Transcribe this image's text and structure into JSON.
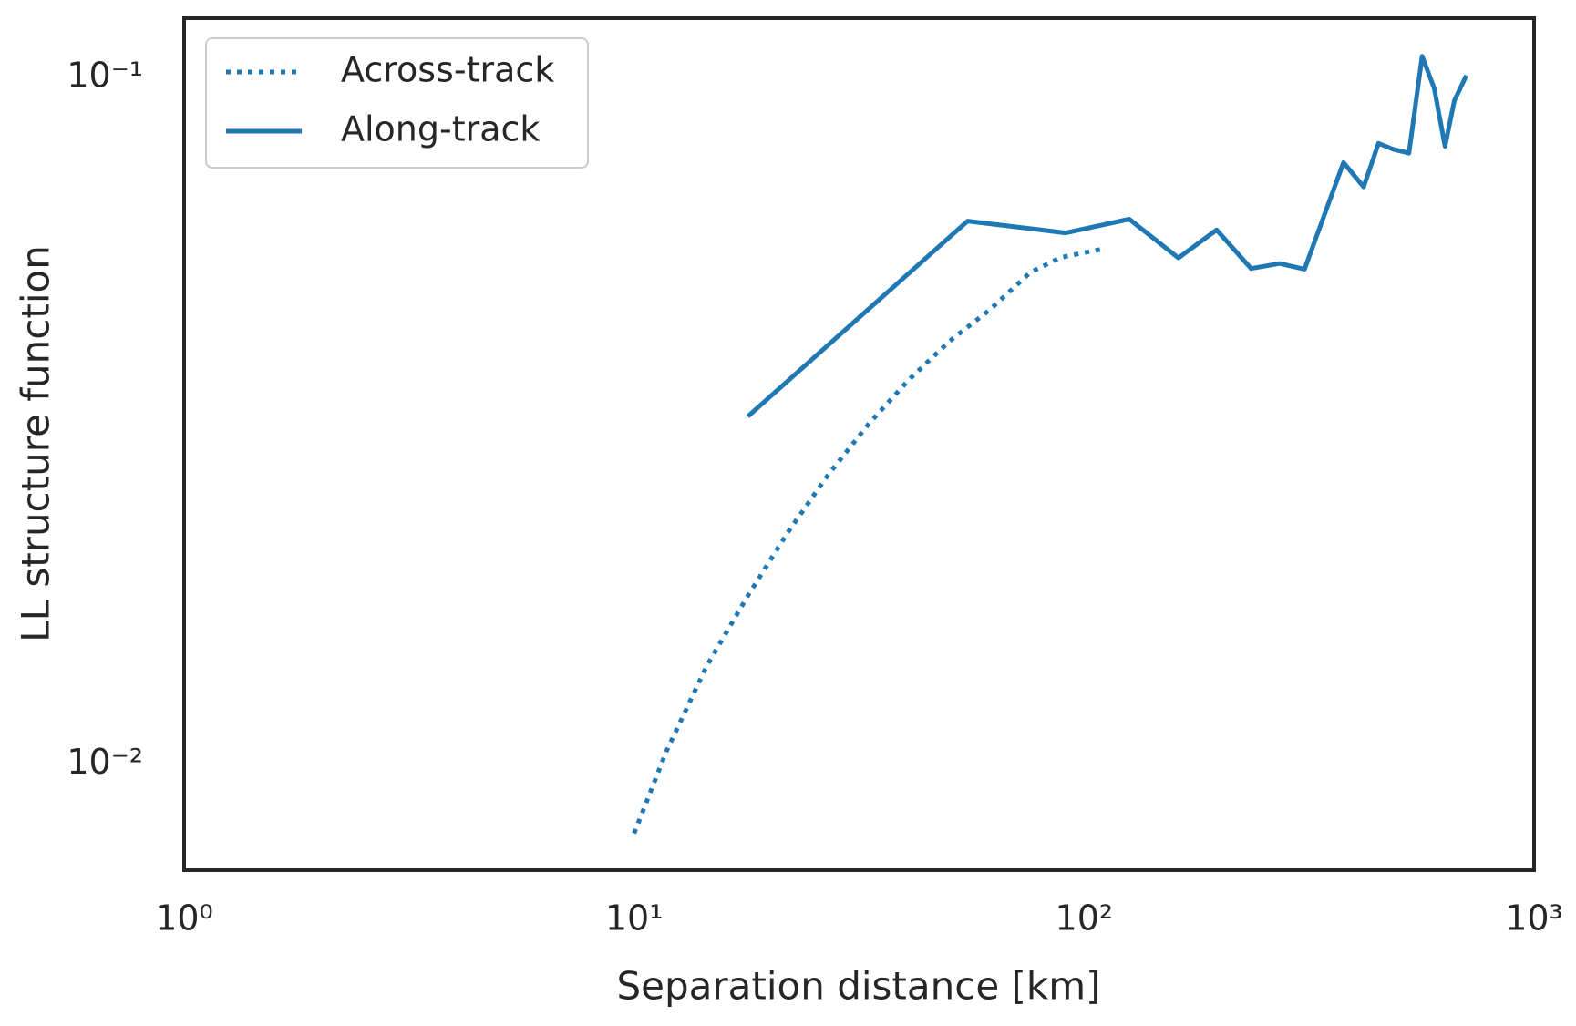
{
  "chart_data": {
    "type": "line",
    "xlabel": "Separation distance [km]",
    "ylabel": "LL structure function",
    "xscale": "log",
    "yscale": "log",
    "xlim": [
      1,
      1000
    ],
    "ylim": [
      0.00701,
      0.122
    ],
    "xticks": [
      {
        "value": 1,
        "label": "10⁰"
      },
      {
        "value": 10,
        "label": "10¹"
      },
      {
        "value": 100,
        "label": "10²"
      },
      {
        "value": 1000,
        "label": "10³"
      }
    ],
    "yticks": [
      {
        "value": 0.01,
        "label": "10⁻²"
      },
      {
        "value": 0.1,
        "label": "10⁻¹"
      }
    ],
    "grid": false,
    "legend": "upper left",
    "series": [
      {
        "name": "Across-track",
        "color": "#1f77b4",
        "style": "dotted",
        "x": [
          10.0,
          11.8,
          14.5,
          17.9,
          22.0,
          27.0,
          33.2,
          40.8,
          50.2,
          61.7,
          75.9,
          88.7,
          112
        ],
        "values": [
          0.00793,
          0.01045,
          0.0139,
          0.0176,
          0.0218,
          0.0264,
          0.0313,
          0.0363,
          0.0413,
          0.0459,
          0.052,
          0.0547,
          0.0564
        ]
      },
      {
        "name": "Along-track",
        "color": "#1f77b4",
        "style": "solid",
        "x": [
          17.9,
          55.1,
          91,
          126,
          162,
          197,
          235,
          272,
          309,
          377,
          418,
          451,
          487,
          527,
          564,
          600,
          634,
          665,
          707
        ],
        "values": [
          0.0321,
          0.0618,
          0.0594,
          0.0622,
          0.0546,
          0.06,
          0.0527,
          0.0536,
          0.0526,
          0.0752,
          0.0693,
          0.0802,
          0.0786,
          0.0776,
          0.1074,
          0.0964,
          0.0794,
          0.0925,
          0.1007
        ]
      }
    ]
  }
}
